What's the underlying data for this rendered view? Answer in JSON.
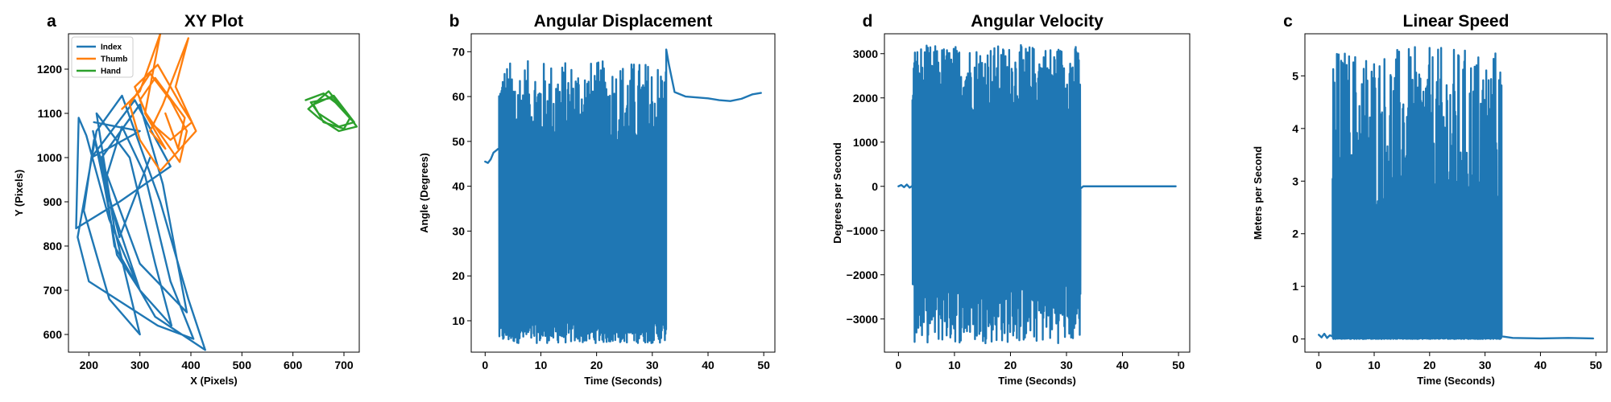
{
  "figure": {
    "panels": [
      "a",
      "b",
      "d",
      "c"
    ]
  },
  "chart_data": [
    {
      "panel_letter": "a",
      "type": "line",
      "title": "XY Plot",
      "xlabel": "X (Pixels)",
      "ylabel": "Y (Pixels)",
      "xlim": [
        160,
        730
      ],
      "ylim": [
        560,
        1280
      ],
      "xticks": [
        200,
        300,
        400,
        500,
        600,
        700
      ],
      "yticks": [
        600,
        700,
        800,
        900,
        1000,
        1100,
        1200
      ],
      "grid": false,
      "legend": "top-left",
      "series": [
        {
          "name": "Index",
          "color": "#1f77b4",
          "x": [
            210,
            300,
            205,
            290,
            360,
            260,
            175,
            180,
            195,
            240,
            300,
            255,
            230,
            265,
            310,
            360,
            405,
            335,
            200,
            178,
            215,
            265,
            340,
            395,
            428,
            330,
            250,
            225,
            300,
            345,
            392,
            300,
            210,
            190,
            240,
            300,
            250,
            215,
            280,
            330,
            362,
            300,
            230,
            208,
            260,
            320
          ],
          "y": [
            1080,
            1060,
            1000,
            1130,
            980,
            900,
            840,
            1090,
            1050,
            860,
            700,
            780,
            940,
            1070,
            960,
            720,
            590,
            620,
            720,
            820,
            1060,
            1140,
            900,
            680,
            565,
            640,
            800,
            1000,
            1120,
            940,
            650,
            760,
            1040,
            880,
            680,
            600,
            840,
            1100,
            1000,
            760,
            620,
            700,
            940,
            1060,
            820,
            1000
          ]
        },
        {
          "name": "Thumb",
          "color": "#ff7f0e",
          "x": [
            265,
            300,
            340,
            310,
            350,
            320,
            345,
            395,
            370,
            410,
            340,
            300,
            280,
            320,
            360,
            392,
            378,
            348,
            312,
            290,
            335,
            380,
            402,
            360,
            320,
            300,
            330,
            388,
            375,
            350
          ],
          "y": [
            1110,
            1150,
            1280,
            1100,
            1020,
            1060,
            1120,
            1270,
            1160,
            1060,
            970,
            1040,
            1120,
            1190,
            1130,
            1060,
            990,
            1040,
            1100,
            1160,
            1210,
            1120,
            1080,
            1040,
            1080,
            1130,
            1180,
            1090,
            1020,
            1100
          ]
        },
        {
          "name": "Hand",
          "color": "#2ca02c",
          "x": [
            625,
            660,
            700,
            725,
            690,
            650,
            630,
            670,
            712,
            700,
            660,
            640,
            680,
            720,
            690,
            650,
            635,
            675,
            715
          ],
          "y": [
            1130,
            1145,
            1110,
            1070,
            1060,
            1090,
            1110,
            1150,
            1090,
            1065,
            1080,
            1120,
            1140,
            1080,
            1070,
            1100,
            1125,
            1135,
            1085
          ]
        }
      ]
    },
    {
      "panel_letter": "b",
      "type": "line",
      "title": "Angular Displacement",
      "xlabel": "Time (Seconds)",
      "ylabel": "Angle (Degrees)",
      "xlim": [
        -2.5,
        52
      ],
      "ylim": [
        3,
        74
      ],
      "xticks": [
        0,
        10,
        20,
        30,
        40,
        50
      ],
      "yticks": [
        10,
        20,
        30,
        40,
        50,
        60,
        70
      ],
      "grid": false,
      "series": [
        {
          "color": "#1f77b4",
          "quiet_start": [
            [
              0,
              45.5
            ],
            [
              0.5,
              45.2
            ],
            [
              1.0,
              46.0
            ],
            [
              1.5,
              47.5
            ],
            [
              2.0,
              48.0
            ],
            [
              2.5,
              48.5
            ]
          ],
          "oscillation": {
            "t_start": 2.5,
            "t_end": 32.5,
            "min_range": [
              5,
              10
            ],
            "max_range": [
              45,
              68
            ]
          },
          "quiet_end": [
            [
              32.5,
              70.5
            ],
            [
              33.0,
              67
            ],
            [
              34.0,
              61
            ],
            [
              36.0,
              60
            ],
            [
              38.0,
              59.8
            ],
            [
              40.0,
              59.6
            ],
            [
              42.0,
              59.2
            ],
            [
              44.0,
              59.0
            ],
            [
              46.0,
              59.5
            ],
            [
              48.0,
              60.5
            ],
            [
              49.5,
              60.8
            ]
          ]
        }
      ]
    },
    {
      "panel_letter": "d",
      "type": "line",
      "title": "Angular Velocity",
      "xlabel": "Time (Seconds)",
      "ylabel": "Degrees per Second",
      "xlim": [
        -2.5,
        52
      ],
      "ylim": [
        -3750,
        3450
      ],
      "xticks": [
        0,
        10,
        20,
        30,
        40,
        50
      ],
      "yticks": [
        -3000,
        -2000,
        -1000,
        0,
        1000,
        2000,
        3000
      ],
      "grid": false,
      "series": [
        {
          "color": "#1f77b4",
          "quiet_start": [
            [
              0,
              0
            ],
            [
              0.5,
              30
            ],
            [
              1.0,
              -20
            ],
            [
              1.5,
              40
            ],
            [
              2.0,
              -30
            ],
            [
              2.5,
              10
            ]
          ],
          "oscillation": {
            "t_start": 2.5,
            "t_end": 32.5,
            "min_range": [
              -3550,
              -2000
            ],
            "max_range": [
              1600,
              3200
            ]
          },
          "quiet_end": [
            [
              32.5,
              -50
            ],
            [
              33.0,
              0
            ],
            [
              40.0,
              0
            ],
            [
              49.5,
              0
            ]
          ]
        }
      ]
    },
    {
      "panel_letter": "c",
      "type": "line",
      "title": "Linear Speed",
      "xlabel": "Time (Seconds)",
      "ylabel": "Meters per Second",
      "xlim": [
        -2.5,
        52
      ],
      "ylim": [
        -0.25,
        5.8
      ],
      "xticks": [
        0,
        10,
        20,
        30,
        40,
        50
      ],
      "yticks": [
        0,
        1,
        2,
        3,
        4,
        5
      ],
      "grid": false,
      "series": [
        {
          "color": "#1f77b4",
          "quiet_start": [
            [
              0,
              0.08
            ],
            [
              0.5,
              0.03
            ],
            [
              1.0,
              0.1
            ],
            [
              1.5,
              0.02
            ],
            [
              2.0,
              0.07
            ],
            [
              2.5,
              0.05
            ]
          ],
          "oscillation": {
            "t_start": 2.5,
            "t_end": 33.0,
            "min_range": [
              0,
              0.02
            ],
            "max_range": [
              2.0,
              5.55
            ]
          },
          "quiet_end": [
            [
              33.0,
              0.05
            ],
            [
              35.0,
              0.02
            ],
            [
              40.0,
              0.01
            ],
            [
              45.0,
              0.02
            ],
            [
              49.5,
              0.01
            ]
          ]
        }
      ]
    }
  ]
}
